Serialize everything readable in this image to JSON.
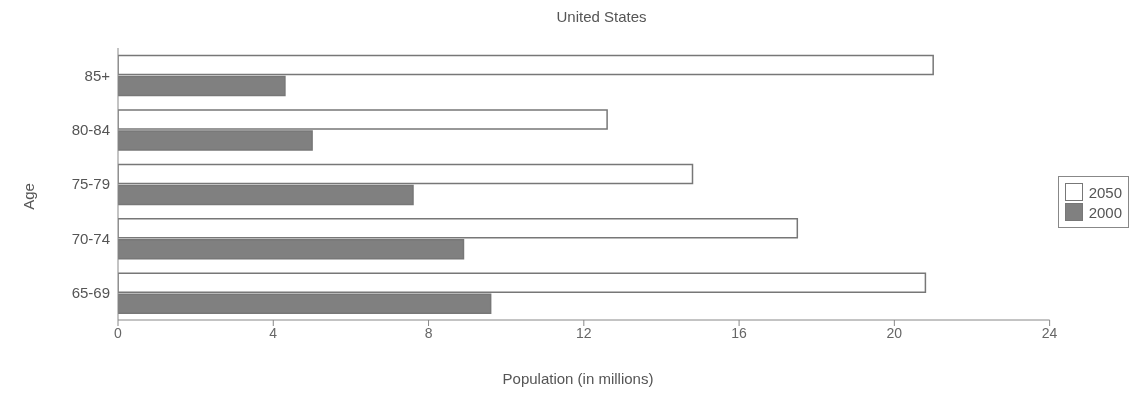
{
  "chart_data": {
    "type": "bar",
    "orientation": "horizontal",
    "title": "United States",
    "xlabel": "Population (in millions)",
    "ylabel": "Age",
    "categories": [
      "85+",
      "80-84",
      "75-79",
      "70-74",
      "65-69"
    ],
    "series": [
      {
        "name": "2050",
        "color": "#ffffff",
        "values": [
          21.0,
          12.6,
          14.8,
          17.5,
          20.8
        ]
      },
      {
        "name": "2000",
        "color": "#808080",
        "values": [
          4.3,
          5.0,
          7.6,
          8.9,
          9.6
        ]
      }
    ],
    "xlim": [
      0,
      24
    ],
    "xticks": [
      0,
      4,
      8,
      12,
      16,
      20,
      24
    ],
    "grid": false,
    "legend": "right"
  }
}
